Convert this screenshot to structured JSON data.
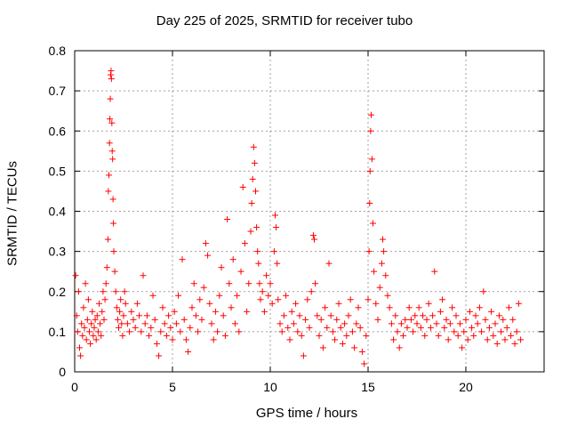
{
  "chart_data": {
    "type": "scatter",
    "title": "Day 225 of 2025, SRMTID for receiver tubo",
    "xlabel": "GPS time / hours",
    "ylabel": "SRMTID / TECUs",
    "xlim": [
      0,
      24
    ],
    "ylim": [
      0,
      0.8
    ],
    "xticks": [
      0,
      5,
      10,
      15,
      20
    ],
    "yticks": [
      0,
      0.1,
      0.2,
      0.3,
      0.4,
      0.5,
      0.6,
      0.7,
      0.8
    ],
    "grid": true,
    "marker": "plus",
    "color": "#ff0000",
    "series": [
      {
        "name": "SRMTID",
        "points": [
          [
            0.05,
            0.24
          ],
          [
            0.1,
            0.14
          ],
          [
            0.15,
            0.1
          ],
          [
            0.2,
            0.2
          ],
          [
            0.25,
            0.06
          ],
          [
            0.3,
            0.04
          ],
          [
            0.35,
            0.12
          ],
          [
            0.4,
            0.09
          ],
          [
            0.45,
            0.16
          ],
          [
            0.5,
            0.11
          ],
          [
            0.55,
            0.22
          ],
          [
            0.6,
            0.08
          ],
          [
            0.65,
            0.13
          ],
          [
            0.7,
            0.18
          ],
          [
            0.75,
            0.1
          ],
          [
            0.8,
            0.07
          ],
          [
            0.85,
            0.12
          ],
          [
            0.9,
            0.15
          ],
          [
            0.95,
            0.09
          ],
          [
            1.0,
            0.11
          ],
          [
            1.05,
            0.13
          ],
          [
            1.1,
            0.08
          ],
          [
            1.15,
            0.14
          ],
          [
            1.2,
            0.1
          ],
          [
            1.25,
            0.17
          ],
          [
            1.3,
            0.12
          ],
          [
            1.35,
            0.09
          ],
          [
            1.4,
            0.15
          ],
          [
            1.45,
            0.2
          ],
          [
            1.5,
            0.13
          ],
          [
            1.55,
            0.18
          ],
          [
            1.6,
            0.22
          ],
          [
            1.65,
            0.26
          ],
          [
            1.7,
            0.33
          ],
          [
            1.72,
            0.45
          ],
          [
            1.75,
            0.49
          ],
          [
            1.78,
            0.57
          ],
          [
            1.8,
            0.63
          ],
          [
            1.82,
            0.68
          ],
          [
            1.84,
            0.74
          ],
          [
            1.86,
            0.75
          ],
          [
            1.88,
            0.73
          ],
          [
            1.9,
            0.62
          ],
          [
            1.92,
            0.55
          ],
          [
            1.94,
            0.53
          ],
          [
            1.96,
            0.43
          ],
          [
            1.98,
            0.37
          ],
          [
            2.0,
            0.3
          ],
          [
            2.05,
            0.25
          ],
          [
            2.1,
            0.2
          ],
          [
            2.15,
            0.16
          ],
          [
            2.2,
            0.13
          ],
          [
            2.25,
            0.11
          ],
          [
            2.3,
            0.15
          ],
          [
            2.35,
            0.18
          ],
          [
            2.4,
            0.12
          ],
          [
            2.45,
            0.09
          ],
          [
            2.5,
            0.14
          ],
          [
            2.55,
            0.2
          ],
          [
            2.6,
            0.17
          ],
          [
            2.7,
            0.12
          ],
          [
            2.8,
            0.1
          ],
          [
            2.9,
            0.15
          ],
          [
            3.0,
            0.13
          ],
          [
            3.1,
            0.11
          ],
          [
            3.2,
            0.17
          ],
          [
            3.3,
            0.14
          ],
          [
            3.4,
            0.1
          ],
          [
            3.5,
            0.24
          ],
          [
            3.6,
            0.12
          ],
          [
            3.7,
            0.14
          ],
          [
            3.8,
            0.09
          ],
          [
            3.9,
            0.11
          ],
          [
            4.0,
            0.19
          ],
          [
            4.1,
            0.13
          ],
          [
            4.2,
            0.07
          ],
          [
            4.3,
            0.04
          ],
          [
            4.4,
            0.1
          ],
          [
            4.5,
            0.16
          ],
          [
            4.6,
            0.12
          ],
          [
            4.7,
            0.09
          ],
          [
            4.8,
            0.14
          ],
          [
            4.9,
            0.11
          ],
          [
            5.0,
            0.08
          ],
          [
            5.1,
            0.15
          ],
          [
            5.2,
            0.12
          ],
          [
            5.3,
            0.19
          ],
          [
            5.4,
            0.1
          ],
          [
            5.5,
            0.28
          ],
          [
            5.6,
            0.13
          ],
          [
            5.7,
            0.08
          ],
          [
            5.8,
            0.05
          ],
          [
            5.9,
            0.11
          ],
          [
            6.0,
            0.16
          ],
          [
            6.1,
            0.22
          ],
          [
            6.2,
            0.14
          ],
          [
            6.3,
            0.1
          ],
          [
            6.4,
            0.18
          ],
          [
            6.5,
            0.13
          ],
          [
            6.6,
            0.21
          ],
          [
            6.7,
            0.32
          ],
          [
            6.8,
            0.29
          ],
          [
            6.9,
            0.17
          ],
          [
            7.0,
            0.12
          ],
          [
            7.1,
            0.08
          ],
          [
            7.2,
            0.15
          ],
          [
            7.3,
            0.1
          ],
          [
            7.4,
            0.19
          ],
          [
            7.5,
            0.26
          ],
          [
            7.6,
            0.14
          ],
          [
            7.7,
            0.09
          ],
          [
            7.8,
            0.38
          ],
          [
            7.9,
            0.22
          ],
          [
            8.0,
            0.16
          ],
          [
            8.1,
            0.28
          ],
          [
            8.2,
            0.12
          ],
          [
            8.3,
            0.19
          ],
          [
            8.4,
            0.1
          ],
          [
            8.5,
            0.25
          ],
          [
            8.6,
            0.46
          ],
          [
            8.7,
            0.32
          ],
          [
            8.8,
            0.15
          ],
          [
            8.9,
            0.22
          ],
          [
            9.0,
            0.35
          ],
          [
            9.05,
            0.42
          ],
          [
            9.1,
            0.48
          ],
          [
            9.15,
            0.56
          ],
          [
            9.2,
            0.52
          ],
          [
            9.25,
            0.45
          ],
          [
            9.3,
            0.36
          ],
          [
            9.35,
            0.3
          ],
          [
            9.4,
            0.27
          ],
          [
            9.45,
            0.22
          ],
          [
            9.5,
            0.18
          ],
          [
            9.6,
            0.2
          ],
          [
            9.7,
            0.15
          ],
          [
            9.8,
            0.24
          ],
          [
            9.9,
            0.19
          ],
          [
            10.0,
            0.22
          ],
          [
            10.1,
            0.17
          ],
          [
            10.2,
            0.3
          ],
          [
            10.25,
            0.39
          ],
          [
            10.3,
            0.36
          ],
          [
            10.35,
            0.27
          ],
          [
            10.4,
            0.18
          ],
          [
            10.5,
            0.12
          ],
          [
            10.6,
            0.1
          ],
          [
            10.7,
            0.14
          ],
          [
            10.8,
            0.19
          ],
          [
            10.9,
            0.11
          ],
          [
            11.0,
            0.08
          ],
          [
            11.1,
            0.15
          ],
          [
            11.2,
            0.12
          ],
          [
            11.3,
            0.17
          ],
          [
            11.4,
            0.1
          ],
          [
            11.5,
            0.14
          ],
          [
            11.6,
            0.09
          ],
          [
            11.7,
            0.04
          ],
          [
            11.8,
            0.13
          ],
          [
            11.9,
            0.18
          ],
          [
            12.0,
            0.11
          ],
          [
            12.1,
            0.2
          ],
          [
            12.2,
            0.34
          ],
          [
            12.25,
            0.33
          ],
          [
            12.3,
            0.22
          ],
          [
            12.4,
            0.14
          ],
          [
            12.5,
            0.09
          ],
          [
            12.6,
            0.13
          ],
          [
            12.7,
            0.06
          ],
          [
            12.8,
            0.16
          ],
          [
            12.9,
            0.11
          ],
          [
            13.0,
            0.27
          ],
          [
            13.1,
            0.14
          ],
          [
            13.2,
            0.1
          ],
          [
            13.3,
            0.08
          ],
          [
            13.4,
            0.13
          ],
          [
            13.5,
            0.17
          ],
          [
            13.6,
            0.11
          ],
          [
            13.7,
            0.07
          ],
          [
            13.8,
            0.12
          ],
          [
            13.9,
            0.09
          ],
          [
            14.0,
            0.14
          ],
          [
            14.1,
            0.18
          ],
          [
            14.2,
            0.1
          ],
          [
            14.3,
            0.06
          ],
          [
            14.4,
            0.12
          ],
          [
            14.5,
            0.16
          ],
          [
            14.6,
            0.11
          ],
          [
            14.7,
            0.05
          ],
          [
            14.8,
            0.02
          ],
          [
            14.9,
            0.09
          ],
          [
            15.0,
            0.18
          ],
          [
            15.05,
            0.3
          ],
          [
            15.08,
            0.42
          ],
          [
            15.1,
            0.5
          ],
          [
            15.13,
            0.6
          ],
          [
            15.16,
            0.64
          ],
          [
            15.2,
            0.53
          ],
          [
            15.25,
            0.37
          ],
          [
            15.3,
            0.25
          ],
          [
            15.4,
            0.17
          ],
          [
            15.5,
            0.13
          ],
          [
            15.6,
            0.21
          ],
          [
            15.7,
            0.27
          ],
          [
            15.75,
            0.33
          ],
          [
            15.8,
            0.3
          ],
          [
            15.9,
            0.24
          ],
          [
            16.0,
            0.19
          ],
          [
            16.1,
            0.16
          ],
          [
            16.2,
            0.12
          ],
          [
            16.3,
            0.08
          ],
          [
            16.4,
            0.14
          ],
          [
            16.5,
            0.1
          ],
          [
            16.6,
            0.06
          ],
          [
            16.7,
            0.12
          ],
          [
            16.8,
            0.09
          ],
          [
            16.9,
            0.13
          ],
          [
            17.0,
            0.11
          ],
          [
            17.1,
            0.16
          ],
          [
            17.2,
            0.13
          ],
          [
            17.3,
            0.1
          ],
          [
            17.4,
            0.14
          ],
          [
            17.5,
            0.12
          ],
          [
            17.6,
            0.16
          ],
          [
            17.7,
            0.11
          ],
          [
            17.8,
            0.14
          ],
          [
            17.9,
            0.09
          ],
          [
            18.0,
            0.13
          ],
          [
            18.1,
            0.17
          ],
          [
            18.2,
            0.11
          ],
          [
            18.3,
            0.14
          ],
          [
            18.4,
            0.25
          ],
          [
            18.5,
            0.12
          ],
          [
            18.6,
            0.09
          ],
          [
            18.7,
            0.15
          ],
          [
            18.8,
            0.18
          ],
          [
            18.9,
            0.11
          ],
          [
            19.0,
            0.13
          ],
          [
            19.1,
            0.08
          ],
          [
            19.2,
            0.12
          ],
          [
            19.3,
            0.16
          ],
          [
            19.4,
            0.1
          ],
          [
            19.5,
            0.14
          ],
          [
            19.6,
            0.09
          ],
          [
            19.7,
            0.12
          ],
          [
            19.8,
            0.06
          ],
          [
            19.9,
            0.1
          ],
          [
            20.0,
            0.13
          ],
          [
            20.1,
            0.08
          ],
          [
            20.2,
            0.15
          ],
          [
            20.3,
            0.11
          ],
          [
            20.4,
            0.09
          ],
          [
            20.5,
            0.14
          ],
          [
            20.6,
            0.12
          ],
          [
            20.7,
            0.16
          ],
          [
            20.8,
            0.1
          ],
          [
            20.9,
            0.2
          ],
          [
            21.0,
            0.13
          ],
          [
            21.1,
            0.08
          ],
          [
            21.2,
            0.11
          ],
          [
            21.3,
            0.15
          ],
          [
            21.4,
            0.09
          ],
          [
            21.5,
            0.12
          ],
          [
            21.6,
            0.07
          ],
          [
            21.7,
            0.14
          ],
          [
            21.8,
            0.1
          ],
          [
            21.9,
            0.13
          ],
          [
            22.0,
            0.08
          ],
          [
            22.1,
            0.11
          ],
          [
            22.2,
            0.16
          ],
          [
            22.3,
            0.09
          ],
          [
            22.4,
            0.13
          ],
          [
            22.5,
            0.07
          ],
          [
            22.6,
            0.1
          ],
          [
            22.7,
            0.17
          ],
          [
            22.8,
            0.08
          ]
        ]
      }
    ]
  }
}
